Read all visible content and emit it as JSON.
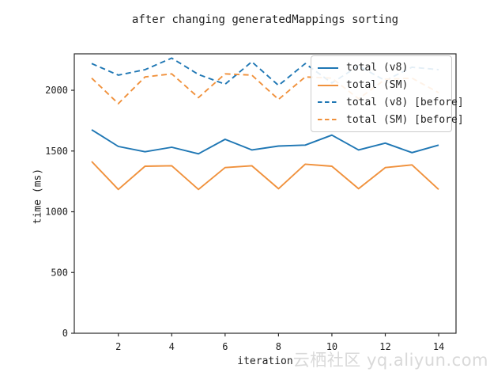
{
  "chart_data": {
    "type": "line",
    "title": "after changing generatedMappings sorting",
    "xlabel": "iteration",
    "ylabel": "time (ms)",
    "x": [
      1,
      2,
      3,
      4,
      5,
      6,
      7,
      8,
      9,
      10,
      11,
      12,
      13,
      14
    ],
    "x_ticks": [
      2,
      4,
      6,
      8,
      10,
      12,
      14
    ],
    "y_ticks": [
      0,
      500,
      1000,
      1500,
      2000
    ],
    "xlim": [
      0.35,
      14.65
    ],
    "ylim": [
      0,
      2300
    ],
    "grid": false,
    "legend_position": "upper right",
    "axis_color": "#2a2a2a",
    "series": [
      {
        "name": "total (v8)",
        "color": "#1f77b4",
        "style": "solid",
        "values": [
          1675,
          1538,
          1494,
          1531,
          1477,
          1596,
          1509,
          1541,
          1549,
          1631,
          1509,
          1565,
          1487,
          1549
        ]
      },
      {
        "name": "total (SM)",
        "color": "#f0913c",
        "style": "solid",
        "values": [
          1414,
          1184,
          1375,
          1379,
          1184,
          1364,
          1379,
          1190,
          1392,
          1375,
          1190,
          1364,
          1386,
          1184
        ]
      },
      {
        "name": "total (v8) [before]",
        "color": "#1f77b4",
        "style": "dashed",
        "values": [
          2220,
          2125,
          2170,
          2265,
          2130,
          2050,
          2235,
          2040,
          2220,
          2060,
          2200,
          2080,
          2190,
          2170
        ]
      },
      {
        "name": "total (SM) [before]",
        "color": "#f0913c",
        "style": "dashed",
        "values": [
          2100,
          1890,
          2110,
          2135,
          1940,
          2135,
          2125,
          1925,
          2110,
          2100,
          1930,
          2090,
          2100,
          1980
        ]
      }
    ]
  },
  "watermark": {
    "text": "云栖社区 yq.aliyun.com"
  }
}
